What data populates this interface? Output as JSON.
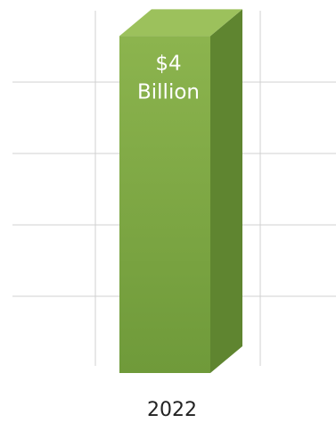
{
  "chart_data": {
    "type": "bar",
    "style": "3d-column",
    "categories": [
      "2022"
    ],
    "series": [
      {
        "values": [
          4
        ]
      }
    ],
    "data_labels": [
      "$4 Billion"
    ],
    "title": "",
    "xlabel": "",
    "ylabel": "",
    "ylim": [
      0,
      4.3
    ],
    "grid": true,
    "legend": "none",
    "colors": {
      "bar_front_top": "#8cb44e",
      "bar_front_bottom": "#6f9a3a",
      "bar_top": "#9cc15c",
      "bar_side": "#5f8530",
      "grid": "#d0d0d0",
      "label": "#ffffff",
      "category_label": "#222222"
    }
  }
}
